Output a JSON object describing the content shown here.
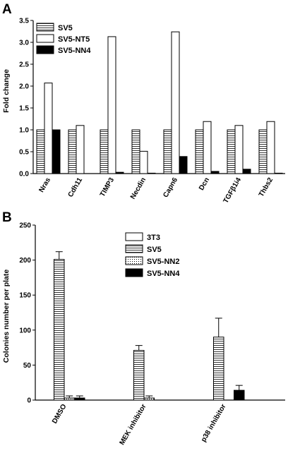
{
  "panels": [
    "A",
    "B"
  ],
  "chart_data": [
    {
      "type": "bar",
      "title": "",
      "xlabel": "",
      "ylabel": "Fold change",
      "ylim": [
        0,
        3.5
      ],
      "yticks": [
        "0.0",
        "0.5",
        "1.0",
        "1.5",
        "2.0",
        "2.5",
        "3.0",
        "3.5"
      ],
      "categories": [
        "Nras",
        "Cdh11",
        "TIMP3",
        "Necdin",
        "Capn6",
        "Dcn",
        "TGFβ1i4",
        "Thbs2"
      ],
      "legend_position": "top-left",
      "series": [
        {
          "name": "SV5",
          "values": [
            1.0,
            1.0,
            1.0,
            1.0,
            1.0,
            1.0,
            1.0,
            1.0
          ],
          "pattern": "horizontal-stripes"
        },
        {
          "name": "SV5-NT5",
          "values": [
            2.07,
            1.1,
            3.13,
            0.51,
            3.24,
            1.19,
            1.1,
            1.19
          ],
          "pattern": "white"
        },
        {
          "name": "SV5-NN4",
          "values": [
            1.0,
            0.0,
            0.03,
            0.01,
            0.39,
            0.05,
            0.1,
            0.01
          ],
          "pattern": "black"
        }
      ]
    },
    {
      "type": "bar",
      "title": "",
      "xlabel": "",
      "ylabel": "Colonies number per plate",
      "ylim": [
        0,
        250
      ],
      "yticks": [
        "0",
        "50",
        "100",
        "150",
        "200",
        "250"
      ],
      "categories": [
        "DMSO",
        "MEK inhibitor",
        "p38 inhibitor"
      ],
      "legend_position": "top-right",
      "series": [
        {
          "name": "3T3",
          "values": [
            0,
            0,
            0
          ],
          "errors": [
            0,
            0,
            0
          ],
          "pattern": "white"
        },
        {
          "name": "SV5",
          "values": [
            201,
            71,
            90
          ],
          "errors": [
            11,
            7,
            27
          ],
          "pattern": "horizontal-stripes"
        },
        {
          "name": "SV5-NN2",
          "values": [
            3,
            3,
            0
          ],
          "errors": [
            3,
            3,
            0
          ],
          "pattern": "dotted"
        },
        {
          "name": "SV5-NN4",
          "values": [
            3,
            0,
            14
          ],
          "errors": [
            3,
            0,
            7
          ],
          "pattern": "black"
        }
      ]
    }
  ]
}
